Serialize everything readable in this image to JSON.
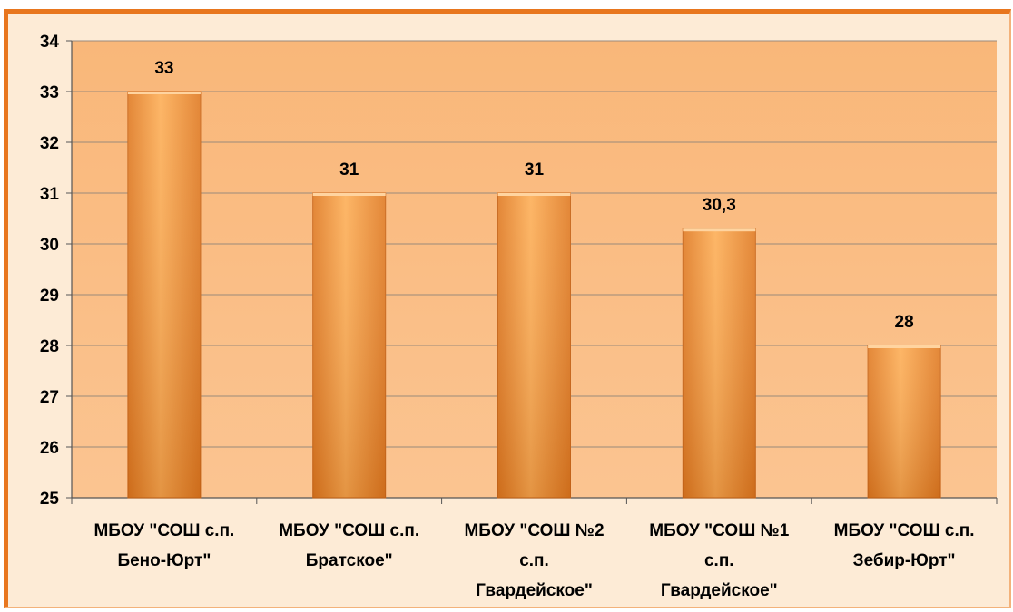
{
  "chart_data": {
    "type": "bar",
    "categories": [
      [
        "МБОУ \"СОШ с.п.",
        "Бено-Юрт\""
      ],
      [
        "МБОУ \"СОШ с.п.",
        "Братское\""
      ],
      [
        "МБОУ \"СОШ №2",
        "с.п.",
        "Гвардейское\""
      ],
      [
        "МБОУ \"СОШ №1",
        "с.п.",
        "Гвардейское\""
      ],
      [
        "МБОУ \"СОШ с.п.",
        "Зебир-Юрт\""
      ]
    ],
    "values": [
      33,
      31,
      31,
      30.3,
      28
    ],
    "data_labels": [
      "33",
      "31",
      "31",
      "30,3",
      "28"
    ],
    "ylim": [
      25,
      34
    ],
    "yticks": [
      25,
      26,
      27,
      28,
      29,
      30,
      31,
      32,
      33,
      34
    ],
    "title": "",
    "xlabel": "",
    "ylabel": "",
    "grid": true,
    "colors": {
      "bar_light": "#fdae56",
      "bar_dark": "#e07a22",
      "plot_bg": "#fbc491",
      "grid": "#9a8a7a",
      "frame": "#e8761e"
    }
  }
}
